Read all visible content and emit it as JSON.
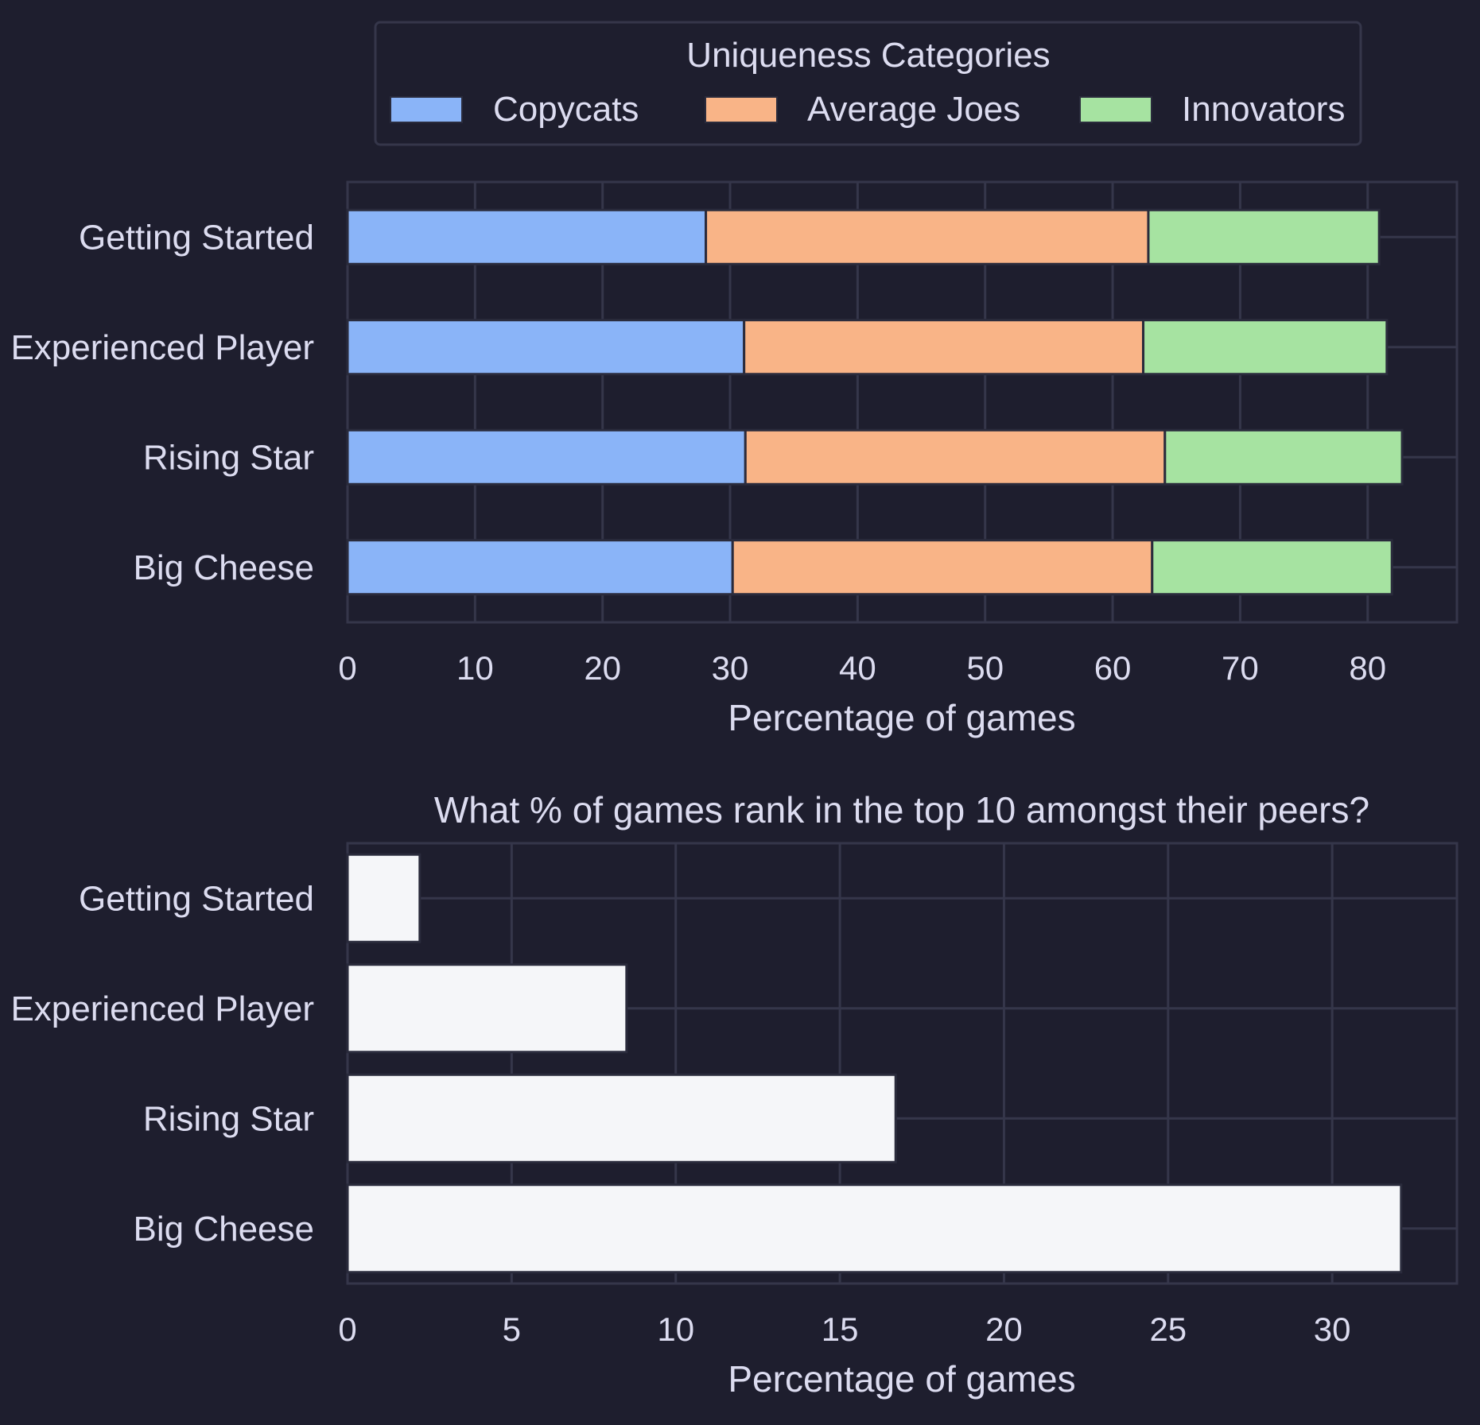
{
  "colors": {
    "background": "#1e1e2e",
    "grid": "#35364a",
    "text": "#dcdcf0",
    "bar_edge": "#2a2b3c",
    "copycats": "#8ab4f8",
    "average_joes": "#f9b487",
    "innovators": "#a6e3a1",
    "top10": "#f5f6f9"
  },
  "chart_data": [
    {
      "type": "bar",
      "orientation": "horizontal",
      "stacked": true,
      "title": "",
      "legend": {
        "title": "Uniqueness Categories",
        "placement": "top-center",
        "entries": [
          "Copycats",
          "Average Joes",
          "Innovators"
        ]
      },
      "categories": [
        "Getting Started",
        "Experienced Player",
        "Rising Star",
        "Big Cheese"
      ],
      "series": [
        {
          "name": "Copycats",
          "color_key": "copycats",
          "values": [
            28.1,
            31.1,
            31.2,
            30.2
          ]
        },
        {
          "name": "Average Joes",
          "color_key": "average_joes",
          "values": [
            34.7,
            31.3,
            32.9,
            32.9
          ]
        },
        {
          "name": "Innovators",
          "color_key": "innovators",
          "values": [
            18.1,
            19.1,
            18.6,
            18.8
          ]
        }
      ],
      "xlabel": "Percentage of games",
      "ylabel": "",
      "xlim": [
        0,
        87
      ],
      "xticks": [
        0,
        10,
        20,
        30,
        40,
        50,
        60,
        70,
        80
      ],
      "grid": true
    },
    {
      "type": "bar",
      "orientation": "horizontal",
      "stacked": false,
      "title": "What % of games rank in the top 10 amongst their peers?",
      "categories": [
        "Getting Started",
        "Experienced Player",
        "Rising Star",
        "Big Cheese"
      ],
      "series": [
        {
          "name": "Top 10",
          "color_key": "top10",
          "values": [
            2.2,
            8.5,
            16.7,
            32.1
          ]
        }
      ],
      "xlabel": "Percentage of games",
      "ylabel": "",
      "xlim": [
        0,
        33.8
      ],
      "xticks": [
        0,
        5,
        10,
        15,
        20,
        25,
        30
      ],
      "grid": true
    }
  ]
}
